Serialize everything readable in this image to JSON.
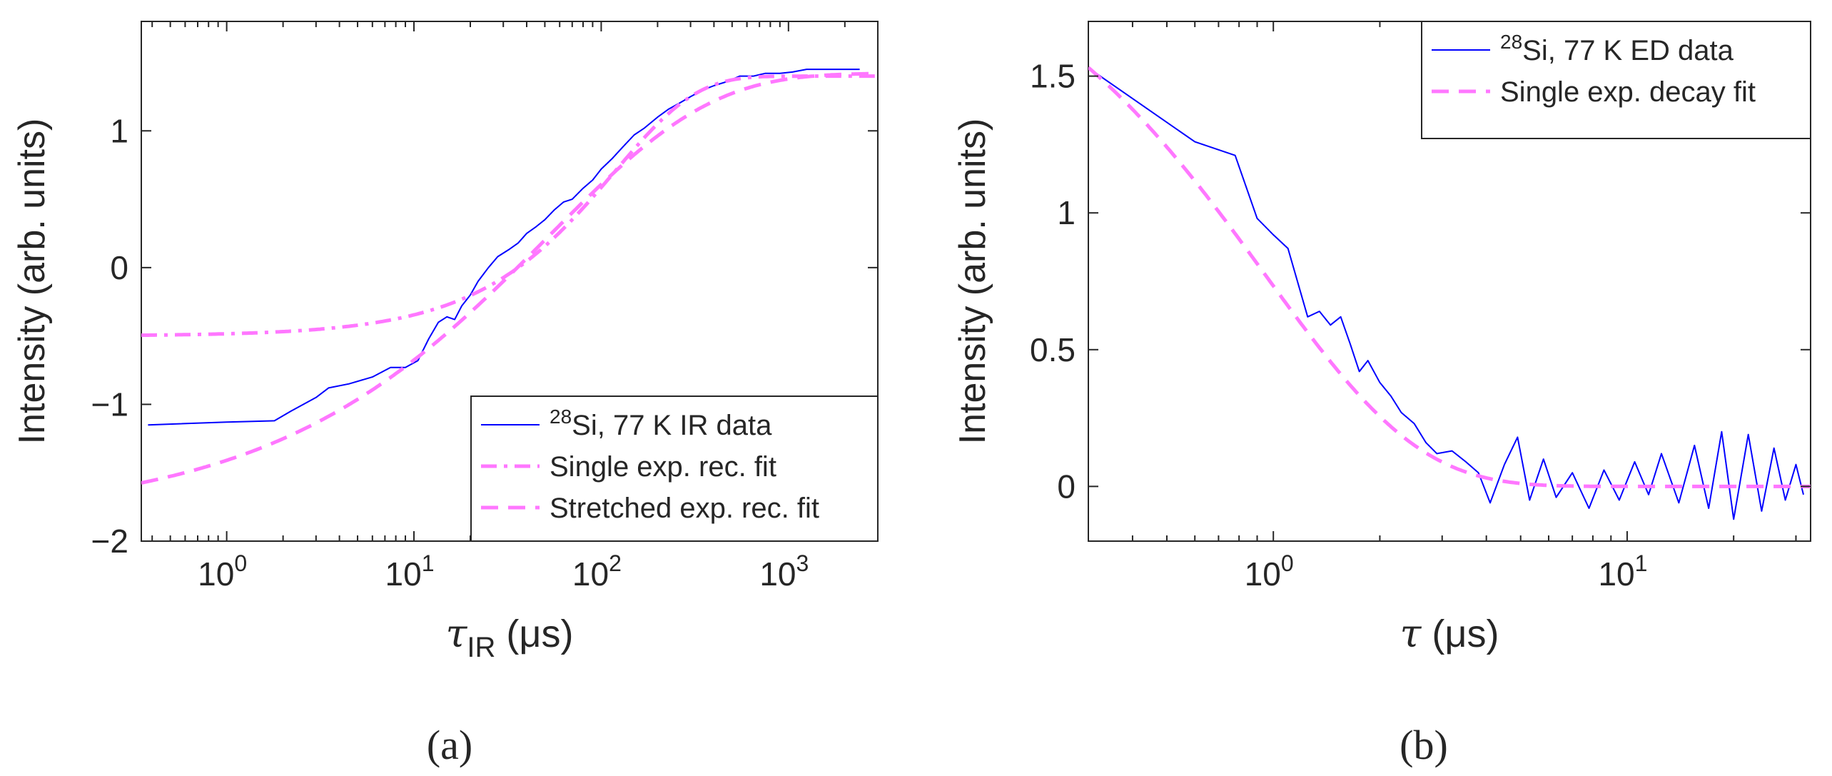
{
  "chart_data": [
    {
      "panel_label": "(a)",
      "type": "line",
      "xscale": "log",
      "xlim": [
        0.35,
        3000
      ],
      "ylim": [
        -2,
        1.8
      ],
      "xlabel_symbol": "τ",
      "xlabel_subscript": "IR",
      "xlabel_unit": " (μs)",
      "ylabel": "Intensity (arb. units)",
      "xtick_exponents": [
        "0",
        "1",
        "2",
        "3"
      ],
      "ytick_values": [
        -2,
        -1,
        0,
        1
      ],
      "ytick_labels": [
        "−2",
        "−1",
        "0",
        "1"
      ],
      "grid": false,
      "legend_position": "lower-right",
      "legend": [
        {
          "superscript": "28",
          "text": "Si, 77 K IR data"
        },
        {
          "superscript": "",
          "text": "Single exp. rec. fit"
        },
        {
          "superscript": "",
          "text": "Stretched exp. rec. fit"
        }
      ],
      "series": [
        {
          "role": "data",
          "color": "#0000ff",
          "x": [
            0.38,
            1.0,
            1.8,
            2.2,
            3.0,
            3.5,
            4.5,
            6.0,
            7.5,
            9.0,
            10.5,
            12.0,
            13.5,
            15.0,
            16.5,
            18.0,
            20.0,
            22.0,
            25.0,
            28.0,
            32.0,
            36.0,
            40.0,
            45.0,
            50.0,
            56.0,
            63.0,
            70.0,
            80.0,
            90.0,
            100.0,
            115.0,
            130.0,
            150.0,
            170.0,
            200.0,
            230.0,
            260.0,
            300.0,
            350.0,
            400.0,
            470.0,
            550.0,
            650.0,
            750.0,
            900.0,
            1050.0,
            1250.0,
            1500.0,
            1800.0,
            2100.0,
            2400.0
          ],
          "y": [
            -1.15,
            -1.13,
            -1.12,
            -1.05,
            -0.95,
            -0.88,
            -0.85,
            -0.8,
            -0.73,
            -0.73,
            -0.68,
            -0.52,
            -0.4,
            -0.36,
            -0.38,
            -0.28,
            -0.2,
            -0.1,
            0.0,
            0.08,
            0.13,
            0.18,
            0.25,
            0.3,
            0.35,
            0.42,
            0.48,
            0.5,
            0.58,
            0.64,
            0.72,
            0.8,
            0.88,
            0.97,
            1.02,
            1.1,
            1.16,
            1.2,
            1.25,
            1.3,
            1.33,
            1.36,
            1.4,
            1.4,
            1.42,
            1.42,
            1.43,
            1.45,
            1.45,
            1.45,
            1.45,
            1.45
          ]
        },
        {
          "role": "single-fit",
          "color": "#ff77ff",
          "model": "A - B*exp(-t/T)",
          "params": {
            "A": 1.4,
            "B": 1.9,
            "T": 118
          }
        },
        {
          "role": "stretched-fit",
          "color": "#ff77ff",
          "model": "A - B*exp(-(t/T)^beta)",
          "params": {
            "A": 1.42,
            "B": 3.25,
            "T": 52,
            "beta": 0.5
          }
        }
      ]
    },
    {
      "panel_label": "(b)",
      "type": "line",
      "xscale": "log",
      "xlim": [
        0.3,
        33
      ],
      "ylim": [
        -0.2,
        1.7
      ],
      "xlabel_symbol": "τ",
      "xlabel_subscript": "",
      "xlabel_unit": " (μs)",
      "ylabel": "Intensity (arb. units)",
      "xtick_exponents": [
        "0",
        "1"
      ],
      "ytick_values": [
        0,
        0.5,
        1,
        1.5
      ],
      "ytick_labels": [
        "0",
        "0.5",
        "1",
        "1.5"
      ],
      "grid": false,
      "legend_position": "top-right",
      "legend": [
        {
          "superscript": "28",
          "text": "Si, 77 K ED data"
        },
        {
          "superscript": "",
          "text": "Single exp. decay fit"
        }
      ],
      "series": [
        {
          "role": "data",
          "color": "#0000ff",
          "x": [
            0.3,
            0.6,
            0.78,
            0.9,
            1.0,
            1.1,
            1.25,
            1.35,
            1.45,
            1.55,
            1.65,
            1.75,
            1.85,
            2.0,
            2.15,
            2.3,
            2.5,
            2.7,
            2.9,
            3.2,
            3.5,
            3.8,
            4.1,
            4.5,
            4.9,
            5.3,
            5.8,
            6.3,
            7.0,
            7.8,
            8.6,
            9.5,
            10.5,
            11.5,
            12.5,
            14.0,
            15.5,
            17.0,
            18.5,
            20.0,
            22.0,
            24.0,
            26.0,
            28.0,
            30.0,
            31.5
          ],
          "y": [
            1.53,
            1.26,
            1.21,
            0.98,
            0.92,
            0.87,
            0.62,
            0.64,
            0.59,
            0.62,
            0.52,
            0.42,
            0.46,
            0.38,
            0.33,
            0.27,
            0.23,
            0.16,
            0.12,
            0.13,
            0.09,
            0.05,
            -0.06,
            0.08,
            0.18,
            -0.05,
            0.1,
            -0.04,
            0.05,
            -0.08,
            0.06,
            -0.05,
            0.09,
            -0.03,
            0.12,
            -0.06,
            0.15,
            -0.08,
            0.2,
            -0.12,
            0.19,
            -0.09,
            0.14,
            -0.05,
            0.08,
            -0.03
          ]
        },
        {
          "role": "decay-fit",
          "color": "#ff77ff",
          "model": "A*exp(-t/T)",
          "params": {
            "A": 2.1,
            "T": 0.95
          }
        }
      ]
    }
  ]
}
